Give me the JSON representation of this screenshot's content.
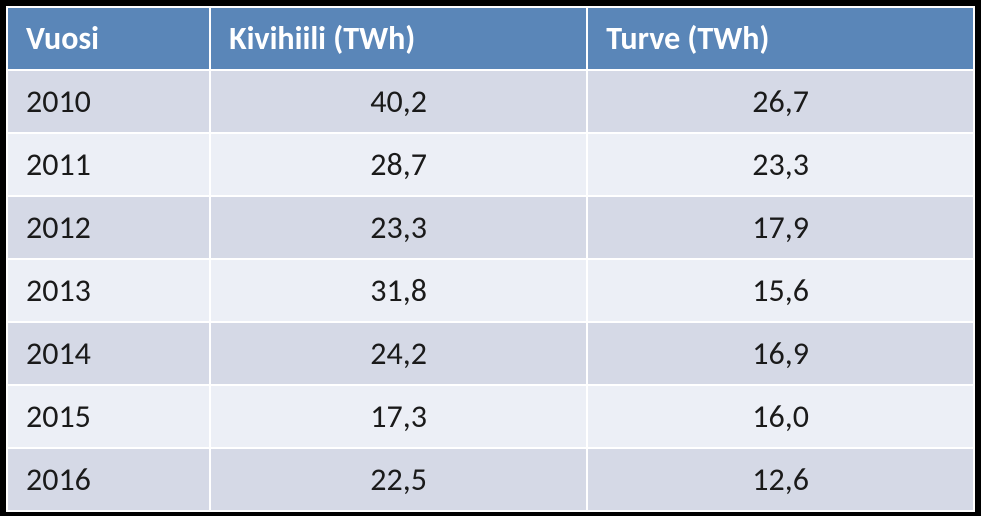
{
  "table": {
    "type": "table",
    "header_bg": "#5a86b8",
    "header_fg": "#ffffff",
    "row_bg_odd": "#d5d9e6",
    "row_bg_even": "#eceff6",
    "border_color": "#ffffff",
    "text_color": "#1a1a1a",
    "header_fontsize": 32,
    "cell_fontsize": 32,
    "font_family": "Calibri",
    "columns": [
      {
        "key": "vuosi",
        "label": "Vuosi",
        "align": "left",
        "width_pct": 21
      },
      {
        "key": "kivihiili",
        "label": "Kivihiili (TWh)",
        "align": "center",
        "width_pct": 39
      },
      {
        "key": "turve",
        "label": "Turve (TWh)",
        "align": "center",
        "width_pct": 40
      }
    ],
    "rows": [
      {
        "vuosi": "2010",
        "kivihiili": "40,2",
        "turve": "26,7"
      },
      {
        "vuosi": "2011",
        "kivihiili": "28,7",
        "turve": "23,3"
      },
      {
        "vuosi": "2012",
        "kivihiili": "23,3",
        "turve": "17,9"
      },
      {
        "vuosi": "2013",
        "kivihiili": "31,8",
        "turve": "15,6"
      },
      {
        "vuosi": "2014",
        "kivihiili": "24,2",
        "turve": "16,9"
      },
      {
        "vuosi": "2015",
        "kivihiili": "17,3",
        "turve": "16,0"
      },
      {
        "vuosi": "2016",
        "kivihiili": "22,5",
        "turve": "12,6"
      }
    ]
  }
}
